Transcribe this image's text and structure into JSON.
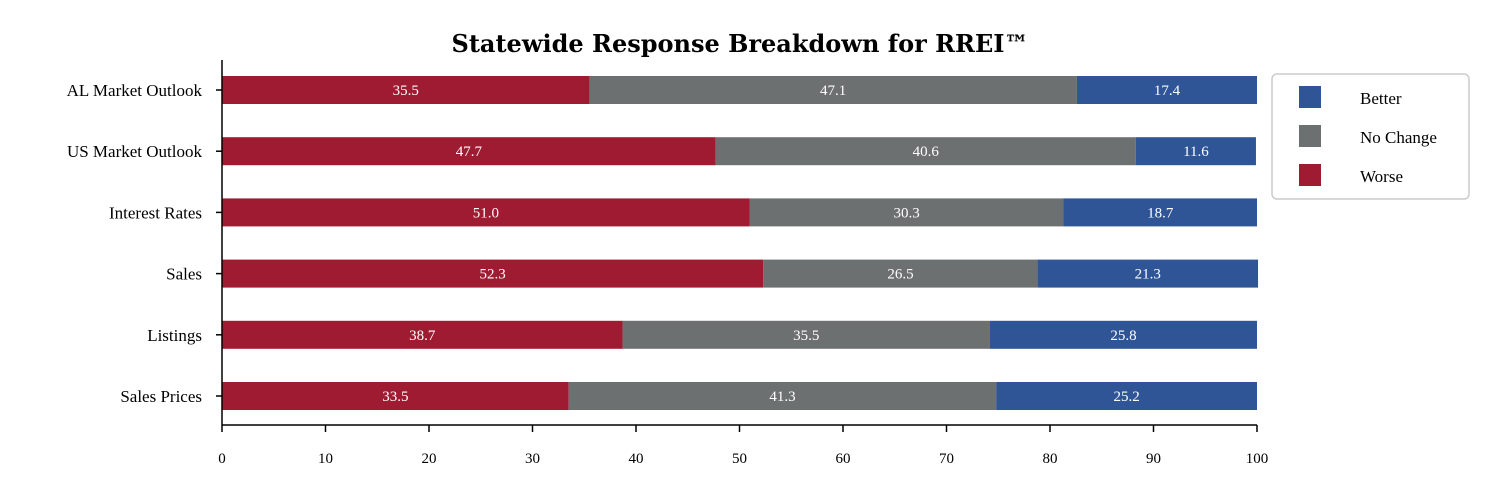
{
  "chart_data": {
    "type": "bar",
    "orientation": "horizontal",
    "stacked": true,
    "title": "Statewide Response Breakdown for RREI™",
    "xlabel": "",
    "ylabel": "",
    "xlim": [
      0,
      100
    ],
    "x_ticks": [
      "0",
      "10",
      "20",
      "30",
      "40",
      "50",
      "60",
      "70",
      "80",
      "90",
      "100"
    ],
    "categories": [
      "AL Market Outlook",
      "US Market Outlook",
      "Interest Rates",
      "Sales",
      "Listings",
      "Sales Prices"
    ],
    "series": [
      {
        "name": "Worse",
        "color": "#9e1b32",
        "values": [
          35.5,
          47.7,
          51.0,
          52.3,
          38.7,
          33.5
        ],
        "labels": [
          "35.5",
          "47.7",
          "51.0",
          "52.3",
          "38.7",
          "33.5"
        ]
      },
      {
        "name": "No Change",
        "color": "#6d7071",
        "values": [
          47.1,
          40.6,
          30.3,
          26.5,
          35.5,
          41.3
        ],
        "labels": [
          "47.1",
          "40.6",
          "30.3",
          "26.5",
          "35.5",
          "41.3"
        ]
      },
      {
        "name": "Better",
        "color": "#2f5597",
        "values": [
          17.4,
          11.6,
          18.7,
          21.3,
          25.8,
          25.2
        ],
        "labels": [
          "17.4",
          "11.6",
          "18.7",
          "21.3",
          "25.8",
          "25.2"
        ]
      }
    ],
    "legend": {
      "placement": "right",
      "entries": [
        "Better",
        "No Change",
        "Worse"
      ]
    },
    "grid": false
  }
}
